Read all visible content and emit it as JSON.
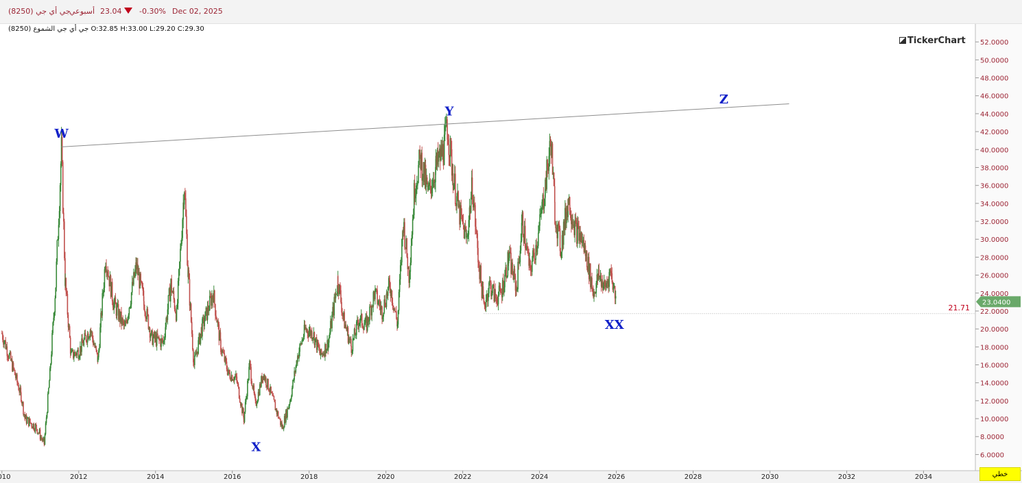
{
  "header": {
    "symbol": "جي أي جي (8250)",
    "interval": "أسبوعي",
    "last_price": "23.04",
    "change_pct": "-0.30%",
    "date": "Dec 02, 2025",
    "down_color": "#c0001b"
  },
  "ohlc_line": "جي أي جي الشموع (8250) O:32.85  H:33.00  L:29.20  C:29.30",
  "logo_text": "TickerChart",
  "mode_button": "خطي",
  "chart_data": {
    "type": "candlestick",
    "title": "",
    "xlabel": "",
    "ylabel": "",
    "x_ticks": [
      "2010",
      "2012",
      "2014",
      "2016",
      "2018",
      "2020",
      "2022",
      "2024",
      "2026",
      "2028",
      "2030",
      "2032",
      "2034"
    ],
    "xlim": [
      2009.95,
      2035.35
    ],
    "ylim": [
      4.2,
      54.0
    ],
    "y_ticks": [
      "6.0000",
      "8.0000",
      "10.0000",
      "12.0000",
      "14.0000",
      "16.0000",
      "18.0000",
      "20.0000",
      "22.0000",
      "24.0000",
      "26.0000",
      "28.0000",
      "30.0000",
      "32.0000",
      "34.0000",
      "36.0000",
      "38.0000",
      "40.0000",
      "42.0000",
      "44.0000",
      "46.0000",
      "48.0000",
      "50.0000",
      "52.0000"
    ],
    "up_color": "#3a8a3a",
    "down_color": "#c0504d",
    "price_path": [
      [
        2010.0,
        19.5
      ],
      [
        2010.3,
        15.5
      ],
      [
        2010.5,
        12.5
      ],
      [
        2010.6,
        10.0
      ],
      [
        2010.9,
        9.0
      ],
      [
        2011.1,
        7.2
      ],
      [
        2011.25,
        15.0
      ],
      [
        2011.4,
        25.0
      ],
      [
        2011.55,
        40.0
      ],
      [
        2011.65,
        25.0
      ],
      [
        2011.8,
        17.0
      ],
      [
        2012.0,
        17.5
      ],
      [
        2012.3,
        20.0
      ],
      [
        2012.5,
        16.5
      ],
      [
        2012.7,
        28.0
      ],
      [
        2012.9,
        23.0
      ],
      [
        2013.2,
        20.0
      ],
      [
        2013.5,
        27.0
      ],
      [
        2013.7,
        23.0
      ],
      [
        2013.9,
        19.0
      ],
      [
        2014.2,
        18.5
      ],
      [
        2014.4,
        25.0
      ],
      [
        2014.55,
        21.5
      ],
      [
        2014.75,
        36.0
      ],
      [
        2014.85,
        26.0
      ],
      [
        2015.0,
        16.0
      ],
      [
        2015.2,
        20.0
      ],
      [
        2015.5,
        24.0
      ],
      [
        2015.7,
        18.0
      ],
      [
        2015.9,
        15.0
      ],
      [
        2016.1,
        14.5
      ],
      [
        2016.3,
        10.0
      ],
      [
        2016.45,
        16.0
      ],
      [
        2016.6,
        11.5
      ],
      [
        2016.8,
        15.0
      ],
      [
        2016.95,
        13.5
      ],
      [
        2017.1,
        11.5
      ],
      [
        2017.3,
        9.0
      ],
      [
        2017.5,
        12.0
      ],
      [
        2017.7,
        17.0
      ],
      [
        2017.9,
        20.0
      ],
      [
        2018.1,
        19.5
      ],
      [
        2018.3,
        17.0
      ],
      [
        2018.5,
        18.5
      ],
      [
        2018.75,
        25.5
      ],
      [
        2018.9,
        21.0
      ],
      [
        2019.1,
        18.0
      ],
      [
        2019.3,
        21.0
      ],
      [
        2019.5,
        20.5
      ],
      [
        2019.7,
        24.0
      ],
      [
        2019.9,
        22.0
      ],
      [
        2020.1,
        25.0
      ],
      [
        2020.3,
        20.5
      ],
      [
        2020.45,
        32.0
      ],
      [
        2020.6,
        26.0
      ],
      [
        2020.75,
        36.0
      ],
      [
        2020.9,
        39.0
      ],
      [
        2021.1,
        35.0
      ],
      [
        2021.3,
        38.0
      ],
      [
        2021.5,
        40.0
      ],
      [
        2021.6,
        42.5
      ],
      [
        2021.75,
        37.0
      ],
      [
        2021.9,
        33.0
      ],
      [
        2022.1,
        30.0
      ],
      [
        2022.25,
        36.0
      ],
      [
        2022.4,
        28.0
      ],
      [
        2022.55,
        22.5
      ],
      [
        2022.7,
        25.0
      ],
      [
        2022.85,
        23.5
      ],
      [
        2023.0,
        24.0
      ],
      [
        2023.2,
        28.0
      ],
      [
        2023.4,
        24.5
      ],
      [
        2023.55,
        32.0
      ],
      [
        2023.75,
        26.5
      ],
      [
        2023.95,
        30.0
      ],
      [
        2024.15,
        36.0
      ],
      [
        2024.3,
        41.0
      ],
      [
        2024.4,
        33.0
      ],
      [
        2024.55,
        29.0
      ],
      [
        2024.75,
        34.5
      ],
      [
        2024.95,
        31.0
      ],
      [
        2025.1,
        30.0
      ],
      [
        2025.25,
        27.5
      ],
      [
        2025.4,
        24.0
      ],
      [
        2025.55,
        26.0
      ],
      [
        2025.7,
        24.5
      ],
      [
        2025.85,
        26.5
      ],
      [
        2026.0,
        23.0
      ]
    ],
    "wave_labels": [
      {
        "text": "W",
        "x": 2011.55,
        "y": 40.4
      },
      {
        "text": "X",
        "x": 2016.62,
        "y": 8.2
      },
      {
        "text": "Y",
        "x": 2021.65,
        "y": 42.9
      },
      {
        "text": "Z",
        "x": 2028.8,
        "y": 45.0
      },
      {
        "text": "XX",
        "x": 2025.95,
        "y": 21.7
      }
    ],
    "trend_line": {
      "x1": 2011.55,
      "y1": 40.3,
      "x2": 2030.5,
      "y2": 45.1
    },
    "support_line": {
      "y": 21.71,
      "label": "21.71",
      "x_start": 2022.55
    },
    "last_value": {
      "y": 23.04,
      "label": "23.0400",
      "color": "#6aa96a"
    }
  }
}
